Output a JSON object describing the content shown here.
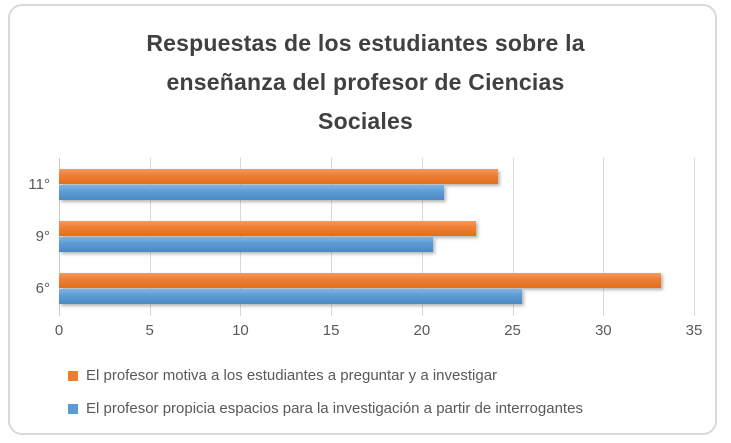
{
  "chart_data": {
    "type": "bar",
    "orientation": "horizontal",
    "title": "Respuestas de los estudiantes sobre la enseñanza del profesor de Ciencias Sociales",
    "title_lines": [
      "Respuestas de los estudiantes sobre la",
      "enseñanza del profesor de Ciencias",
      "Sociales"
    ],
    "categories": [
      "11°",
      "9°",
      "6°"
    ],
    "series": [
      {
        "name": "El profesor motiva a los estudiantes a preguntar y a investigar",
        "color": "#ED7D31",
        "values": [
          24.2,
          23.0,
          33.2
        ]
      },
      {
        "name": "El profesor propicia espacios para la investigación a partir de interrogantes",
        "color": "#5B9BD5",
        "values": [
          21.2,
          20.6,
          25.5
        ]
      }
    ],
    "xlim": [
      0,
      35
    ],
    "xticks": [
      0,
      5,
      10,
      15,
      20,
      25,
      30,
      35
    ],
    "grid": true,
    "legend_position": "bottom-left",
    "colors": {
      "grid": "#D9D9D9",
      "frame_border": "#D9D9D9",
      "axis_text": "#595959",
      "title_text": "#404040"
    }
  }
}
